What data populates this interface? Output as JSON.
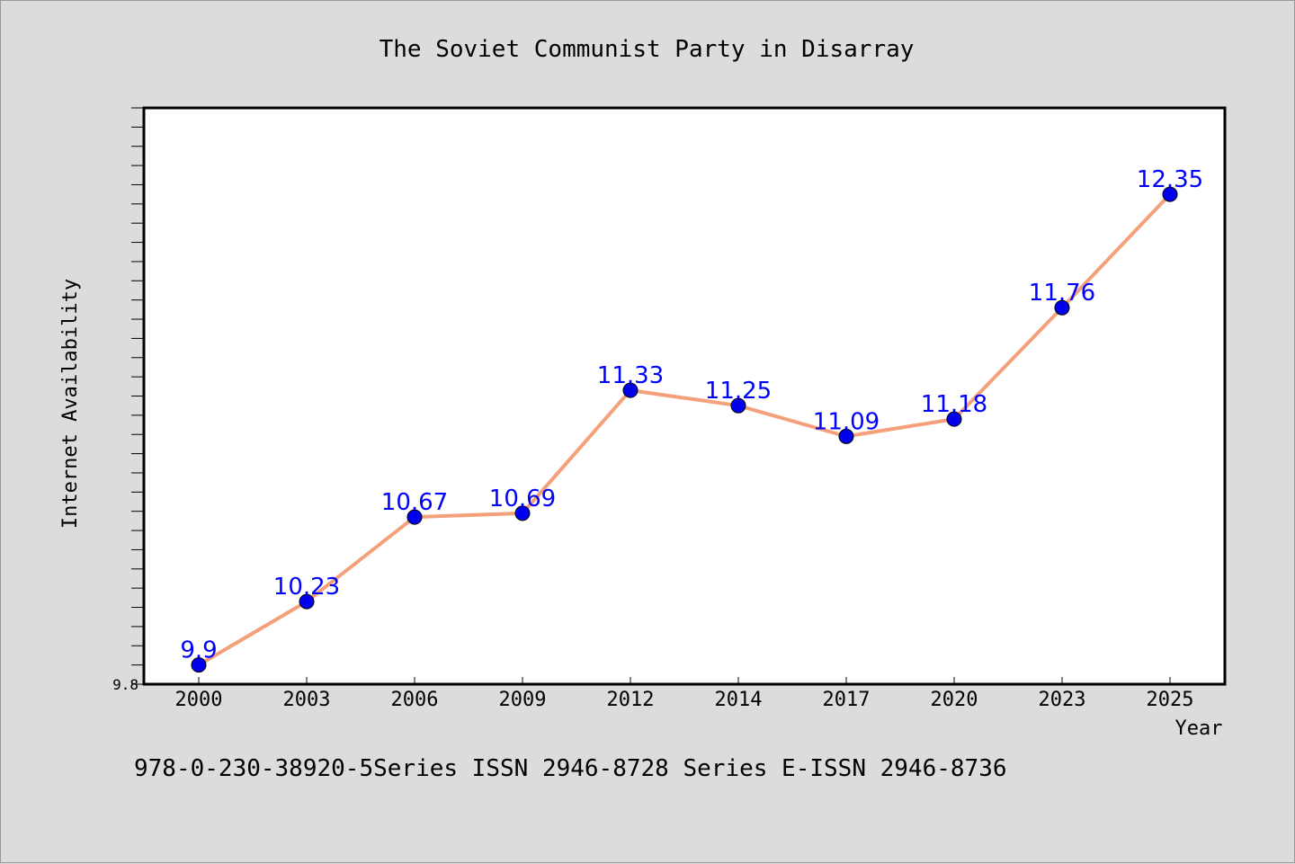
{
  "chart_data": {
    "type": "line",
    "title": "The Soviet Communist Party in Disarray",
    "xlabel": "Year",
    "ylabel": "Internet Availability",
    "categories": [
      "2000",
      "2003",
      "2006",
      "2009",
      "2012",
      "2014",
      "2017",
      "2020",
      "2023",
      "2025"
    ],
    "series": [
      {
        "values": [
          9.9,
          10.23,
          10.67,
          10.69,
          11.33,
          11.25,
          11.09,
          11.18,
          11.76,
          12.35
        ],
        "line_color": "#f4a07a",
        "marker_color": "#0000ee",
        "label_color": "#0000ff"
      }
    ],
    "ylim": [
      9.8,
      12.8
    ],
    "yticks_labeled": [
      "9.8"
    ],
    "grid": false,
    "legend": "none"
  },
  "footer": {
    "text": "978-0-230-38920-5Series ISSN 2946-8728 Series E-ISSN 2946-8736"
  }
}
